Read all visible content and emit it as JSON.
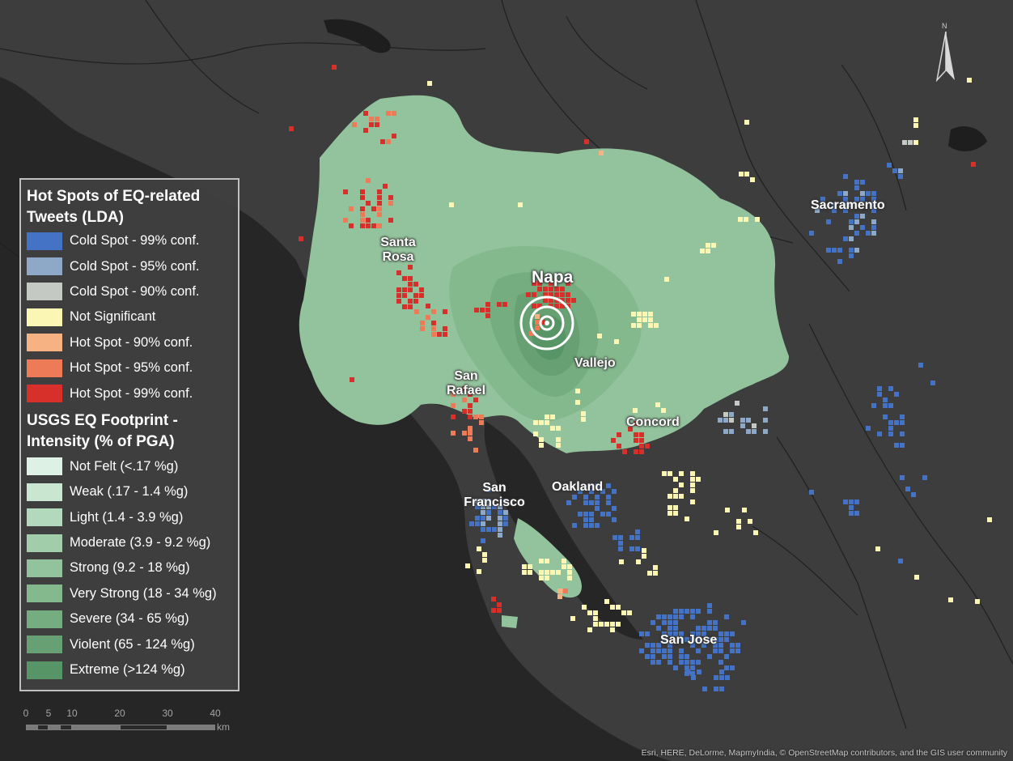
{
  "legend": {
    "hotspot_title": "Hot Spots of EQ-related Tweets (LDA)",
    "hotspot_items": [
      {
        "label": "Cold Spot - 99% conf.",
        "color": "#4472c4"
      },
      {
        "label": "Cold Spot - 95% conf.",
        "color": "#8ea9c8"
      },
      {
        "label": "Cold Spot - 90% conf.",
        "color": "#c4c9c3"
      },
      {
        "label": "Not Significant",
        "color": "#fbf6b3"
      },
      {
        "label": "Hot Spot - 90% conf.",
        "color": "#f7b283"
      },
      {
        "label": "Hot Spot - 95% conf.",
        "color": "#ee7b58"
      },
      {
        "label": "Hot Spot - 99% conf.",
        "color": "#d7302b"
      }
    ],
    "intensity_title": "USGS EQ Footprint - Intensity (% of PGA)",
    "intensity_items": [
      {
        "label": "Not Felt (<.17 %g)",
        "color": "#ddf2e5"
      },
      {
        "label": "Weak (.17 - 1.4 %g)",
        "color": "#c8e6d0"
      },
      {
        "label": "Light (1.4 - 3.9 %g)",
        "color": "#b3d9bc"
      },
      {
        "label": "Moderate (3.9 - 9.2 %g)",
        "color": "#a2cdab"
      },
      {
        "label": "Strong (9.2 - 18 %g)",
        "color": "#93c39c"
      },
      {
        "label": "Very Strong (18 - 34 %g)",
        "color": "#84b98e"
      },
      {
        "label": "Severe (34 - 65 %g)",
        "color": "#76ad80"
      },
      {
        "label": "Violent (65 - 124 %g)",
        "color": "#67a073"
      },
      {
        "label": "Extreme (>124 %g)",
        "color": "#579466"
      }
    ]
  },
  "places": {
    "santa_rosa": "Santa Rosa",
    "napa": "Napa",
    "vallejo": "Vallejo",
    "san_rafael": "San Rafael",
    "concord": "Concord",
    "san_francisco": "San Francisco",
    "oakland": "Oakland",
    "sacramento": "Sacramento",
    "san_jose": "San Jose"
  },
  "scale_bar": {
    "ticks": [
      "0",
      "5",
      "10",
      "20",
      "30",
      "40"
    ],
    "unit": "km"
  },
  "north_arrow_label": "N",
  "attribution": "Esri, HERE, DeLorme, MapmyIndia, © OpenStreetMap contributors, and the GIS user community"
}
